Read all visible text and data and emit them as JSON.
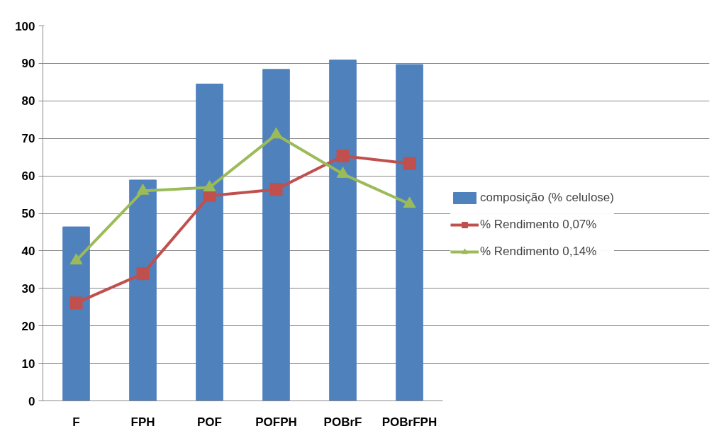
{
  "chart_data": {
    "type": "bar",
    "categories": [
      "F",
      "FPH",
      "POF",
      "POFPH",
      "POBrF",
      "POBrFPH"
    ],
    "series": [
      {
        "name": "composição (% celulose)",
        "color": "#4f81bd",
        "values": [
          46.4,
          58.9,
          84.5,
          88.4,
          90.9,
          89.7
        ]
      },
      {
        "name": "% Rendimento 0,07%",
        "type": "line",
        "marker": "square",
        "color": "#c0504d",
        "values": [
          26.1,
          33.9,
          54.7,
          56.4,
          65.3,
          63.3
        ]
      },
      {
        "name": "% Rendimento 0,14%",
        "type": "line",
        "marker": "triangle",
        "color": "#9bbb59",
        "values": [
          37.4,
          56.0,
          56.9,
          71.0,
          60.5,
          52.5
        ]
      }
    ],
    "ylim": [
      0,
      100
    ],
    "yticks": [
      0,
      10,
      20,
      30,
      40,
      50,
      60,
      70,
      80,
      90,
      100
    ],
    "grid": "y",
    "legend": "right"
  }
}
